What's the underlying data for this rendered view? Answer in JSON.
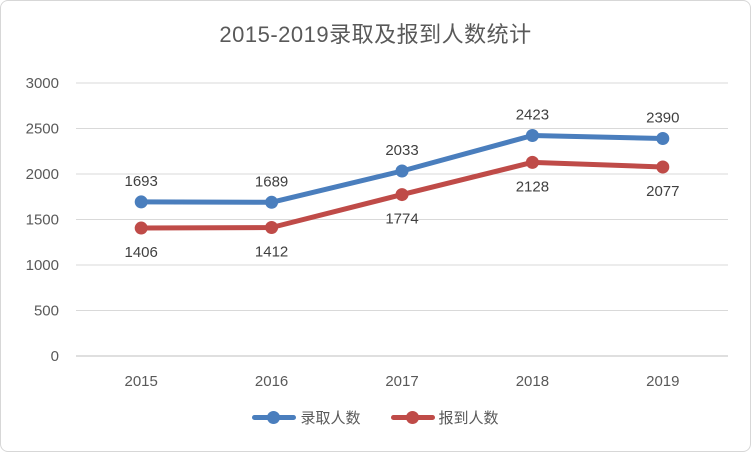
{
  "title": "2015-2019录取及报到人数统计",
  "colors": {
    "background": "#ffffff",
    "frame_border": "#d7d7d7",
    "gridline": "#d9d9d9",
    "axis_line": "#bfbfbf",
    "tick_text": "#595959",
    "title_text": "#595959",
    "data_label_text": "#404040",
    "series_admitted": "#4a7ebd",
    "series_registered": "#bf4b48"
  },
  "chart_data": {
    "type": "line",
    "title": "2015-2019录取及报到人数统计",
    "categories": [
      "2015",
      "2016",
      "2017",
      "2018",
      "2019"
    ],
    "series": [
      {
        "name": "录取人数",
        "color": "#4a7ebd",
        "values": [
          1693,
          1689,
          2033,
          2423,
          2390
        ],
        "label_position": "above"
      },
      {
        "name": "报到人数",
        "color": "#bf4b48",
        "values": [
          1406,
          1412,
          1774,
          2128,
          2077
        ],
        "label_position": "below"
      }
    ],
    "xlabel": "",
    "ylabel": "",
    "ylim": [
      0,
      3000
    ],
    "yticks": [
      0,
      500,
      1000,
      1500,
      2000,
      2500,
      3000
    ],
    "grid": "horizontal",
    "legend_position": "bottom",
    "data_labels": true
  }
}
